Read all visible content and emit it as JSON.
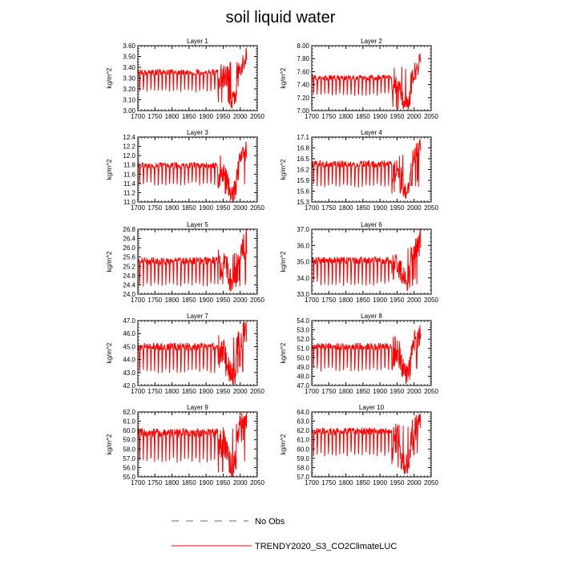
{
  "page": {
    "title": "soil liquid water"
  },
  "legend": {
    "items": [
      {
        "label": "No Obs",
        "style": "dashed",
        "color": "#6a5acd"
      },
      {
        "label": "TRENDY2020_S3_CO2ClimateLUC",
        "style": "solid",
        "color": "#ff0000"
      }
    ]
  },
  "colors": {
    "series": "#ff0000",
    "axis": "#000000"
  },
  "chart_data": [
    {
      "type": "line",
      "title": "Layer 1",
      "ylabel": "kg/m^2",
      "xlim": [
        1700,
        2050
      ],
      "xticks": [
        1700,
        1750,
        1800,
        1850,
        1900,
        1950,
        2000,
        2050
      ],
      "ylim": [
        3.0,
        3.6
      ],
      "yticks": [
        "3.00",
        "3.10",
        "3.20",
        "3.30",
        "3.40",
        "3.50",
        "3.60"
      ],
      "series": [
        {
          "name": "TRENDY2020_S3_CO2ClimateLUC",
          "start": 1700,
          "end": 2019,
          "base": 3.35,
          "low": 3.17,
          "high": 3.38,
          "end_peak": 3.58,
          "late_low": 3.05
        }
      ]
    },
    {
      "type": "line",
      "title": "Layer 2",
      "ylabel": "kg/m^2",
      "xlim": [
        1700,
        2050
      ],
      "xticks": [
        1700,
        1750,
        1800,
        1850,
        1900,
        1950,
        2000,
        2050
      ],
      "ylim": [
        7.0,
        8.0
      ],
      "yticks": [
        "7.00",
        "7.20",
        "7.40",
        "7.60",
        "7.80",
        "8.00"
      ],
      "series": [
        {
          "name": "TRENDY2020_S3_CO2ClimateLUC",
          "start": 1700,
          "end": 2019,
          "base": 7.48,
          "low": 7.22,
          "high": 7.55,
          "end_peak": 7.88,
          "late_low": 7.02
        }
      ]
    },
    {
      "type": "line",
      "title": "Layer 3",
      "ylabel": "kg/m^2",
      "xlim": [
        1700,
        2050
      ],
      "xticks": [
        1700,
        1750,
        1800,
        1850,
        1900,
        1950,
        2000,
        2050
      ],
      "ylim": [
        11.0,
        12.4
      ],
      "yticks": [
        "11.0",
        "11.2",
        "11.4",
        "11.6",
        "11.8",
        "12.0",
        "12.2",
        "12.4"
      ],
      "series": [
        {
          "name": "TRENDY2020_S3_CO2ClimateLUC",
          "start": 1700,
          "end": 2019,
          "base": 11.75,
          "low": 11.35,
          "high": 11.85,
          "end_peak": 12.3,
          "late_low": 11.12
        }
      ]
    },
    {
      "type": "line",
      "title": "Layer 4",
      "ylabel": "kg/m^2",
      "xlim": [
        1700,
        2050
      ],
      "xticks": [
        1700,
        1750,
        1800,
        1850,
        1900,
        1950,
        2000,
        2050
      ],
      "ylim": [
        15.3,
        17.1
      ],
      "yticks": [
        "15.3",
        "15.6",
        "15.9",
        "16.2",
        "16.5",
        "16.8",
        "17.1"
      ],
      "series": [
        {
          "name": "TRENDY2020_S3_CO2ClimateLUC",
          "start": 1700,
          "end": 2019,
          "base": 16.35,
          "low": 15.7,
          "high": 16.45,
          "end_peak": 17.05,
          "late_low": 15.5
        }
      ]
    },
    {
      "type": "line",
      "title": "Layer 5",
      "ylabel": "kg/m^2",
      "xlim": [
        1700,
        2050
      ],
      "xticks": [
        1700,
        1750,
        1800,
        1850,
        1900,
        1950,
        2000,
        2050
      ],
      "ylim": [
        24.0,
        26.8
      ],
      "yticks": [
        "24.0",
        "24.4",
        "24.8",
        "25.2",
        "25.6",
        "26.0",
        "26.4",
        "26.8"
      ],
      "series": [
        {
          "name": "TRENDY2020_S3_CO2ClimateLUC",
          "start": 1700,
          "end": 2019,
          "base": 25.45,
          "low": 24.3,
          "high": 25.6,
          "end_peak": 26.6,
          "late_low": 24.4
        }
      ]
    },
    {
      "type": "line",
      "title": "Layer 6",
      "ylabel": "kg/m^2",
      "xlim": [
        1700,
        2050
      ],
      "xticks": [
        1700,
        1750,
        1800,
        1850,
        1900,
        1950,
        2000,
        2050
      ],
      "ylim": [
        33.0,
        37.0
      ],
      "yticks": [
        "33.0",
        "34.0",
        "35.0",
        "36.0",
        "37.0"
      ],
      "series": [
        {
          "name": "TRENDY2020_S3_CO2ClimateLUC",
          "start": 1700,
          "end": 2019,
          "base": 35.1,
          "low": 33.5,
          "high": 35.3,
          "end_peak": 36.8,
          "late_low": 33.6
        }
      ]
    },
    {
      "type": "line",
      "title": "Layer 7",
      "ylabel": "kg/m^2",
      "xlim": [
        1700,
        2050
      ],
      "xticks": [
        1700,
        1750,
        1800,
        1850,
        1900,
        1950,
        2000,
        2050
      ],
      "ylim": [
        42.0,
        47.0
      ],
      "yticks": [
        "42.0",
        "43.0",
        "44.0",
        "45.0",
        "46.0",
        "47.0"
      ],
      "series": [
        {
          "name": "TRENDY2020_S3_CO2ClimateLUC",
          "start": 1700,
          "end": 2019,
          "base": 45.0,
          "low": 42.9,
          "high": 45.3,
          "end_peak": 46.9,
          "late_low": 42.4
        }
      ]
    },
    {
      "type": "line",
      "title": "Layer 8",
      "ylabel": "kg/m^2",
      "xlim": [
        1700,
        2050
      ],
      "xticks": [
        1700,
        1750,
        1800,
        1850,
        1900,
        1950,
        2000,
        2050
      ],
      "ylim": [
        47.0,
        54.0
      ],
      "yticks": [
        "47.0",
        "48.0",
        "49.0",
        "50.0",
        "51.0",
        "52.0",
        "53.0",
        "54.0"
      ],
      "series": [
        {
          "name": "TRENDY2020_S3_CO2ClimateLUC",
          "start": 1700,
          "end": 2019,
          "base": 51.0,
          "low": 48.5,
          "high": 51.6,
          "end_peak": 53.5,
          "late_low": 47.9
        }
      ]
    },
    {
      "type": "line",
      "title": "Layer 9",
      "ylabel": "kg/m^2",
      "xlim": [
        1700,
        2050
      ],
      "xticks": [
        1700,
        1750,
        1800,
        1850,
        1900,
        1950,
        2000,
        2050
      ],
      "ylim": [
        55.0,
        62.0
      ],
      "yticks": [
        "55.0",
        "56.0",
        "57.0",
        "58.0",
        "59.0",
        "60.0",
        "61.0",
        "62.0"
      ],
      "series": [
        {
          "name": "TRENDY2020_S3_CO2ClimateLUC",
          "start": 1700,
          "end": 2019,
          "base": 59.5,
          "low": 56.5,
          "high": 60.2,
          "end_peak": 61.7,
          "late_low": 55.4
        }
      ]
    },
    {
      "type": "line",
      "title": "Layer 10",
      "ylabel": "kg/m^2",
      "xlim": [
        1700,
        2050
      ],
      "xticks": [
        1700,
        1750,
        1800,
        1850,
        1900,
        1950,
        2000,
        2050
      ],
      "ylim": [
        57.0,
        64.0
      ],
      "yticks": [
        "57.0",
        "58.0",
        "59.0",
        "60.0",
        "61.0",
        "62.0",
        "63.0",
        "64.0"
      ],
      "series": [
        {
          "name": "TRENDY2020_S3_CO2ClimateLUC",
          "start": 1700,
          "end": 2019,
          "base": 61.5,
          "low": 59.2,
          "high": 62.3,
          "end_peak": 63.6,
          "late_low": 57.6
        }
      ]
    }
  ]
}
